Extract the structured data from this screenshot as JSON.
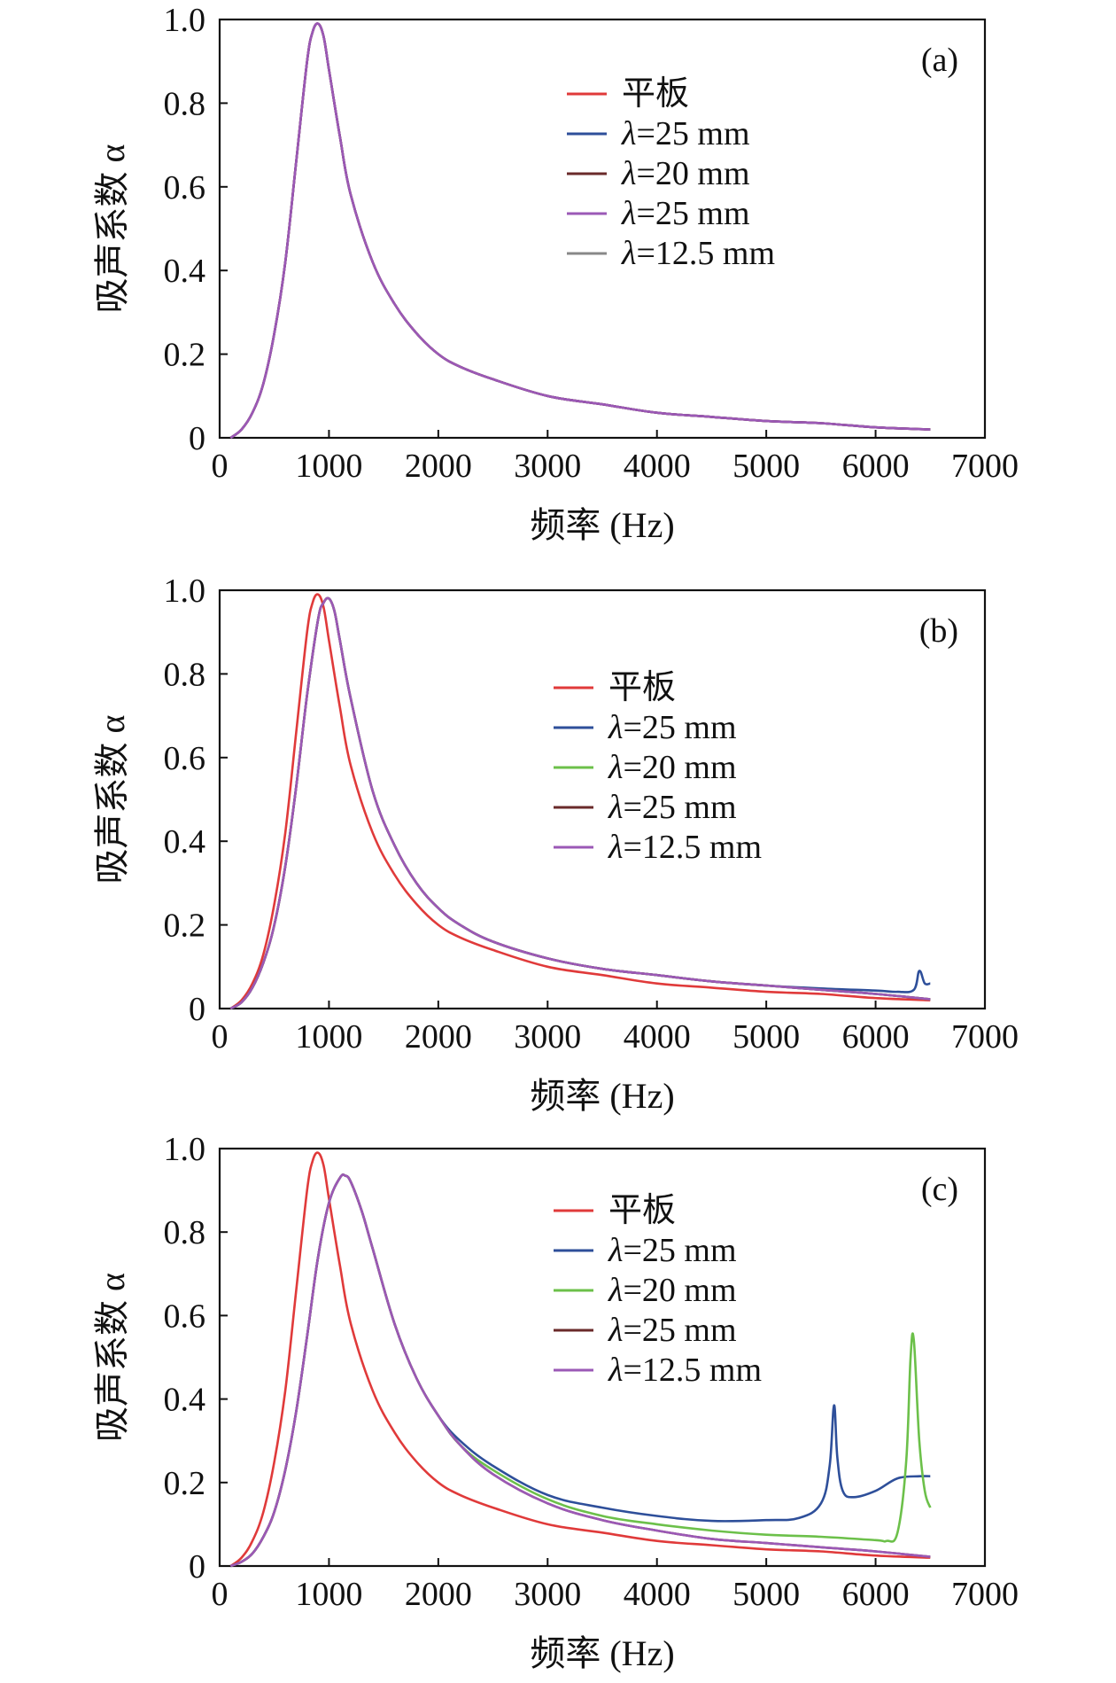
{
  "chart_data": [
    {
      "type": "line",
      "panel_label": "(a)",
      "xlabel": "频率 (Hz)",
      "ylabel": "吸声系数 α",
      "xlim": [
        0,
        7000
      ],
      "ylim": [
        0,
        1.0
      ],
      "xticks": [
        0,
        1000,
        2000,
        3000,
        4000,
        5000,
        6000,
        7000
      ],
      "xtick_labels": [
        "0",
        "1000",
        "2000",
        "3000",
        "4000",
        "5000",
        "6000",
        "7000"
      ],
      "yticks": [
        0,
        0.2,
        0.4,
        0.6,
        0.8,
        1.0
      ],
      "ytick_labels": [
        "0",
        "0.2",
        "0.4",
        "0.6",
        "0.8",
        "1.0"
      ],
      "grid": false,
      "legend_position": "upper-center",
      "series": [
        {
          "name": "平板",
          "lambda": false,
          "color": "#e03a3a",
          "x": [
            100,
            200,
            300,
            400,
            500,
            600,
            700,
            800,
            850,
            900,
            950,
            1000,
            1100,
            1200,
            1400,
            1600,
            1800,
            2000,
            2200,
            2500,
            3000,
            3500,
            4000,
            4500,
            5000,
            5500,
            6000,
            6500
          ],
          "y": [
            0.0,
            0.02,
            0.06,
            0.13,
            0.25,
            0.42,
            0.66,
            0.9,
            0.97,
            0.99,
            0.96,
            0.88,
            0.72,
            0.58,
            0.42,
            0.32,
            0.25,
            0.2,
            0.17,
            0.14,
            0.1,
            0.08,
            0.06,
            0.05,
            0.04,
            0.035,
            0.025,
            0.02
          ]
        },
        {
          "name": "=25 mm",
          "lambda": true,
          "color": "#2e4f9a",
          "x": [
            100,
            200,
            300,
            400,
            500,
            600,
            700,
            800,
            850,
            900,
            950,
            1000,
            1100,
            1200,
            1400,
            1600,
            1800,
            2000,
            2200,
            2500,
            3000,
            3500,
            4000,
            4500,
            5000,
            5500,
            6000,
            6500
          ],
          "y": [
            0.0,
            0.02,
            0.06,
            0.13,
            0.25,
            0.42,
            0.66,
            0.9,
            0.97,
            0.99,
            0.96,
            0.88,
            0.72,
            0.58,
            0.42,
            0.32,
            0.25,
            0.2,
            0.17,
            0.14,
            0.1,
            0.08,
            0.06,
            0.05,
            0.04,
            0.035,
            0.025,
            0.02
          ]
        },
        {
          "name": "=20 mm",
          "lambda": true,
          "color": "#6a2a2a",
          "x": [
            100,
            200,
            300,
            400,
            500,
            600,
            700,
            800,
            850,
            900,
            950,
            1000,
            1100,
            1200,
            1400,
            1600,
            1800,
            2000,
            2200,
            2500,
            3000,
            3500,
            4000,
            4500,
            5000,
            5500,
            6000,
            6500
          ],
          "y": [
            0.0,
            0.02,
            0.06,
            0.13,
            0.25,
            0.42,
            0.66,
            0.9,
            0.97,
            0.99,
            0.96,
            0.88,
            0.72,
            0.58,
            0.42,
            0.32,
            0.25,
            0.2,
            0.17,
            0.14,
            0.1,
            0.08,
            0.06,
            0.05,
            0.04,
            0.035,
            0.025,
            0.02
          ]
        },
        {
          "name": "=25 mm",
          "lambda": true,
          "color": "#9b59b6",
          "x": [
            100,
            200,
            300,
            400,
            500,
            600,
            700,
            800,
            850,
            900,
            950,
            1000,
            1100,
            1200,
            1400,
            1600,
            1800,
            2000,
            2200,
            2500,
            3000,
            3500,
            4000,
            4500,
            5000,
            5500,
            6000,
            6500
          ],
          "y": [
            0.0,
            0.02,
            0.06,
            0.13,
            0.25,
            0.42,
            0.66,
            0.9,
            0.97,
            0.99,
            0.96,
            0.88,
            0.72,
            0.58,
            0.42,
            0.32,
            0.25,
            0.2,
            0.17,
            0.14,
            0.1,
            0.08,
            0.06,
            0.05,
            0.04,
            0.035,
            0.025,
            0.02
          ]
        },
        {
          "name": "=12.5 mm",
          "lambda": true,
          "color": "#888888",
          "x": [],
          "y": []
        }
      ]
    },
    {
      "type": "line",
      "panel_label": "(b)",
      "xlabel": "频率 (Hz)",
      "ylabel": "吸声系数 α",
      "xlim": [
        0,
        7000
      ],
      "ylim": [
        0,
        1.0
      ],
      "xticks": [
        0,
        1000,
        2000,
        3000,
        4000,
        5000,
        6000,
        7000
      ],
      "xtick_labels": [
        "0",
        "1000",
        "2000",
        "3000",
        "4000",
        "5000",
        "6000",
        "7000"
      ],
      "yticks": [
        0,
        0.2,
        0.4,
        0.6,
        0.8,
        1.0
      ],
      "ytick_labels": [
        "0",
        "0.2",
        "0.4",
        "0.6",
        "0.8",
        "1.0"
      ],
      "grid": false,
      "legend_position": "upper-center",
      "series": [
        {
          "name": "平板",
          "lambda": false,
          "color": "#e03a3a",
          "x": [
            100,
            200,
            300,
            400,
            500,
            600,
            700,
            800,
            850,
            900,
            950,
            1000,
            1100,
            1200,
            1400,
            1600,
            1800,
            2000,
            2200,
            2500,
            3000,
            3500,
            4000,
            4500,
            5000,
            5500,
            6000,
            6500
          ],
          "y": [
            0.0,
            0.02,
            0.06,
            0.13,
            0.25,
            0.42,
            0.66,
            0.9,
            0.97,
            0.99,
            0.96,
            0.88,
            0.72,
            0.58,
            0.42,
            0.32,
            0.25,
            0.2,
            0.17,
            0.14,
            0.1,
            0.08,
            0.06,
            0.05,
            0.04,
            0.035,
            0.025,
            0.02
          ]
        },
        {
          "name": "=25 mm",
          "lambda": true,
          "color": "#2e4f9a",
          "x": [
            100,
            200,
            300,
            400,
            500,
            600,
            700,
            800,
            900,
            950,
            1000,
            1050,
            1100,
            1200,
            1400,
            1600,
            1800,
            2000,
            2200,
            2500,
            3000,
            3500,
            4000,
            4500,
            5000,
            5500,
            6000,
            6200,
            6350,
            6400,
            6450,
            6500
          ],
          "y": [
            0.0,
            0.015,
            0.05,
            0.11,
            0.2,
            0.34,
            0.53,
            0.75,
            0.93,
            0.97,
            0.98,
            0.95,
            0.88,
            0.74,
            0.52,
            0.39,
            0.3,
            0.24,
            0.2,
            0.16,
            0.12,
            0.095,
            0.08,
            0.065,
            0.055,
            0.048,
            0.043,
            0.04,
            0.045,
            0.09,
            0.06,
            0.06
          ]
        },
        {
          "name": "=20 mm",
          "lambda": true,
          "color": "#6cc04a",
          "x": [
            100,
            200,
            300,
            400,
            500,
            600,
            700,
            800,
            900,
            950,
            1000,
            1050,
            1100,
            1200,
            1400,
            1600,
            1800,
            2000,
            2200,
            2500,
            3000,
            3500,
            4000,
            4500,
            5000,
            5500,
            6000,
            6500
          ],
          "y": [
            0.0,
            0.015,
            0.05,
            0.11,
            0.2,
            0.34,
            0.53,
            0.75,
            0.93,
            0.97,
            0.98,
            0.95,
            0.88,
            0.74,
            0.52,
            0.39,
            0.3,
            0.24,
            0.2,
            0.16,
            0.12,
            0.095,
            0.08,
            0.065,
            0.055,
            0.045,
            0.035,
            0.022
          ]
        },
        {
          "name": "=25 mm",
          "lambda": true,
          "color": "#6a2a2a",
          "x": [
            100,
            200,
            300,
            400,
            500,
            600,
            700,
            800,
            900,
            950,
            1000,
            1050,
            1100,
            1200,
            1400,
            1600,
            1800,
            2000,
            2200,
            2500,
            3000,
            3500,
            4000,
            4500,
            5000,
            5500,
            6000,
            6500
          ],
          "y": [
            0.0,
            0.015,
            0.05,
            0.11,
            0.2,
            0.34,
            0.53,
            0.75,
            0.93,
            0.97,
            0.98,
            0.95,
            0.88,
            0.74,
            0.52,
            0.39,
            0.3,
            0.24,
            0.2,
            0.16,
            0.12,
            0.095,
            0.08,
            0.065,
            0.055,
            0.045,
            0.035,
            0.022
          ]
        },
        {
          "name": "=12.5 mm",
          "lambda": true,
          "color": "#9b59b6",
          "x": [
            100,
            200,
            300,
            400,
            500,
            600,
            700,
            800,
            900,
            950,
            1000,
            1050,
            1100,
            1200,
            1400,
            1600,
            1800,
            2000,
            2200,
            2500,
            3000,
            3500,
            4000,
            4500,
            5000,
            5500,
            6000,
            6500
          ],
          "y": [
            0.0,
            0.015,
            0.05,
            0.11,
            0.2,
            0.34,
            0.53,
            0.75,
            0.93,
            0.97,
            0.98,
            0.95,
            0.88,
            0.74,
            0.52,
            0.39,
            0.3,
            0.24,
            0.2,
            0.16,
            0.12,
            0.095,
            0.08,
            0.065,
            0.055,
            0.045,
            0.035,
            0.022
          ]
        }
      ]
    },
    {
      "type": "line",
      "panel_label": "(c)",
      "xlabel": "频率 (Hz)",
      "ylabel": "吸声系数 α",
      "xlim": [
        0,
        7000
      ],
      "ylim": [
        0,
        1.0
      ],
      "xticks": [
        0,
        1000,
        2000,
        3000,
        4000,
        5000,
        6000,
        7000
      ],
      "xtick_labels": [
        "0",
        "1000",
        "2000",
        "3000",
        "4000",
        "5000",
        "6000",
        "7000"
      ],
      "yticks": [
        0,
        0.2,
        0.4,
        0.6,
        0.8,
        1.0
      ],
      "ytick_labels": [
        "0",
        "0.2",
        "0.4",
        "0.6",
        "0.8",
        "1.0"
      ],
      "grid": false,
      "legend_position": "upper-center",
      "series": [
        {
          "name": "平板",
          "lambda": false,
          "color": "#e03a3a",
          "x": [
            100,
            200,
            300,
            400,
            500,
            600,
            700,
            800,
            850,
            900,
            950,
            1000,
            1100,
            1200,
            1400,
            1600,
            1800,
            2000,
            2200,
            2500,
            3000,
            3500,
            4000,
            4500,
            5000,
            5500,
            6000,
            6500
          ],
          "y": [
            0.0,
            0.02,
            0.06,
            0.13,
            0.25,
            0.42,
            0.66,
            0.9,
            0.97,
            0.99,
            0.96,
            0.88,
            0.72,
            0.58,
            0.42,
            0.32,
            0.25,
            0.2,
            0.17,
            0.14,
            0.1,
            0.08,
            0.06,
            0.05,
            0.04,
            0.035,
            0.025,
            0.02
          ]
        },
        {
          "name": "=25 mm",
          "lambda": true,
          "color": "#2e4f9a",
          "x": [
            100,
            200,
            300,
            400,
            500,
            600,
            700,
            800,
            900,
            1000,
            1100,
            1150,
            1200,
            1300,
            1400,
            1600,
            1800,
            2000,
            2200,
            2500,
            3000,
            3500,
            4000,
            4500,
            5000,
            5300,
            5500,
            5580,
            5620,
            5650,
            5700,
            5800,
            6000,
            6200,
            6400,
            6500
          ],
          "y": [
            0.0,
            0.01,
            0.03,
            0.07,
            0.13,
            0.23,
            0.37,
            0.55,
            0.74,
            0.87,
            0.93,
            0.935,
            0.92,
            0.85,
            0.76,
            0.58,
            0.45,
            0.36,
            0.3,
            0.24,
            0.17,
            0.14,
            0.12,
            0.108,
            0.11,
            0.115,
            0.15,
            0.24,
            0.385,
            0.26,
            0.18,
            0.165,
            0.18,
            0.21,
            0.215,
            0.215
          ]
        },
        {
          "name": "=20 mm",
          "lambda": true,
          "color": "#6cc04a",
          "x": [
            100,
            200,
            300,
            400,
            500,
            600,
            700,
            800,
            900,
            1000,
            1100,
            1150,
            1200,
            1300,
            1400,
            1600,
            1800,
            2000,
            2200,
            2500,
            3000,
            3500,
            4000,
            4500,
            5000,
            5500,
            6000,
            6100,
            6200,
            6280,
            6320,
            6350,
            6400,
            6450,
            6500
          ],
          "y": [
            0.0,
            0.01,
            0.03,
            0.07,
            0.13,
            0.23,
            0.37,
            0.55,
            0.74,
            0.87,
            0.93,
            0.935,
            0.92,
            0.85,
            0.76,
            0.58,
            0.45,
            0.36,
            0.29,
            0.23,
            0.16,
            0.12,
            0.1,
            0.085,
            0.075,
            0.07,
            0.062,
            0.06,
            0.08,
            0.25,
            0.5,
            0.54,
            0.3,
            0.18,
            0.14
          ]
        },
        {
          "name": "=25 mm",
          "lambda": true,
          "color": "#6a2a2a",
          "x": [
            100,
            200,
            300,
            400,
            500,
            600,
            700,
            800,
            900,
            1000,
            1100,
            1150,
            1200,
            1300,
            1400,
            1600,
            1800,
            2000,
            2200,
            2500,
            3000,
            3500,
            4000,
            4500,
            5000,
            5500,
            6000,
            6500
          ],
          "y": [
            0.0,
            0.01,
            0.03,
            0.07,
            0.13,
            0.23,
            0.37,
            0.55,
            0.74,
            0.87,
            0.93,
            0.935,
            0.92,
            0.85,
            0.76,
            0.58,
            0.45,
            0.36,
            0.29,
            0.22,
            0.15,
            0.11,
            0.085,
            0.065,
            0.055,
            0.045,
            0.035,
            0.022
          ]
        },
        {
          "name": "=12.5 mm",
          "lambda": true,
          "color": "#9b59b6",
          "x": [
            100,
            200,
            300,
            400,
            500,
            600,
            700,
            800,
            900,
            1000,
            1100,
            1150,
            1200,
            1300,
            1400,
            1600,
            1800,
            2000,
            2200,
            2500,
            3000,
            3500,
            4000,
            4500,
            5000,
            5500,
            6000,
            6500
          ],
          "y": [
            0.0,
            0.01,
            0.03,
            0.07,
            0.13,
            0.23,
            0.37,
            0.55,
            0.74,
            0.87,
            0.93,
            0.935,
            0.92,
            0.85,
            0.76,
            0.58,
            0.45,
            0.36,
            0.29,
            0.22,
            0.15,
            0.11,
            0.085,
            0.065,
            0.055,
            0.045,
            0.035,
            0.022
          ]
        }
      ]
    }
  ]
}
